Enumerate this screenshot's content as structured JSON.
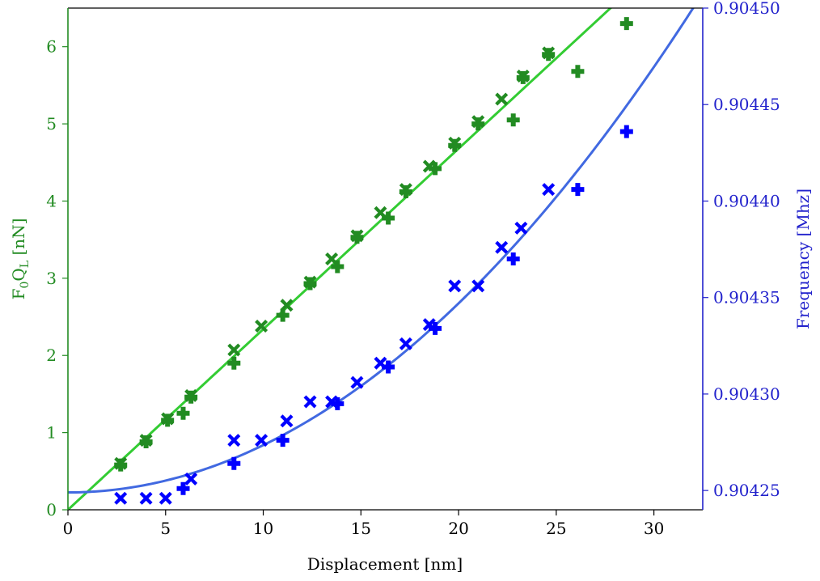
{
  "chart_data": {
    "type": "scatter",
    "xlabel": "Displacement [nm]",
    "ylabel_left": "F0QL [nN]",
    "ylabel_left_parts": {
      "base": "F",
      "sub1": "0",
      "mid": "Q",
      "sub2": "L",
      "unit": " [nN]"
    },
    "ylabel_right": "Frequency [Mhz]",
    "xlim": [
      0,
      32.5
    ],
    "ylim_left": [
      0,
      6.5
    ],
    "ylim_right": [
      0.90424,
      0.9045
    ],
    "x_ticks": [
      0,
      5,
      10,
      15,
      20,
      25,
      30
    ],
    "x_tick_labels": [
      "0",
      "5",
      "10",
      "15",
      "20",
      "25",
      "30"
    ],
    "y_left_ticks": [
      0,
      1,
      2,
      3,
      4,
      5,
      6
    ],
    "y_left_tick_labels": [
      "0",
      "1",
      "2",
      "3",
      "4",
      "5",
      "6"
    ],
    "y_right_ticks": [
      0.90425,
      0.9043,
      0.90435,
      0.9044,
      0.90445,
      0.9045
    ],
    "y_right_tick_labels": [
      "0.90425",
      "0.90430",
      "0.90435",
      "0.90440",
      "0.90445",
      "0.90450"
    ],
    "grid": false,
    "legend": "none",
    "colors": {
      "left_axis": "#228b22",
      "force_points": "#228b22",
      "force_fit": "#33cc33",
      "right_axis": "#2222cc",
      "freq_points": "#0000ff",
      "freq_fit": "#4169e1"
    },
    "series": [
      {
        "axis": "left",
        "marker": "X",
        "points": [
          [
            2.7,
            0.6
          ],
          [
            4.0,
            0.9
          ],
          [
            5.1,
            1.18
          ],
          [
            6.3,
            1.48
          ],
          [
            8.5,
            2.07
          ],
          [
            9.9,
            2.38
          ],
          [
            11.2,
            2.65
          ],
          [
            12.4,
            2.95
          ],
          [
            13.5,
            3.25
          ],
          [
            14.8,
            3.55
          ],
          [
            16.0,
            3.85
          ],
          [
            17.3,
            4.15
          ],
          [
            18.5,
            4.45
          ],
          [
            19.8,
            4.75
          ],
          [
            21.0,
            5.03
          ],
          [
            22.2,
            5.32
          ],
          [
            23.3,
            5.62
          ],
          [
            24.6,
            5.92
          ]
        ]
      },
      {
        "axis": "left",
        "marker": "P",
        "points": [
          [
            2.7,
            0.58
          ],
          [
            4.0,
            0.88
          ],
          [
            5.1,
            1.16
          ],
          [
            5.9,
            1.25
          ],
          [
            6.3,
            1.46
          ],
          [
            8.5,
            1.9
          ],
          [
            11.0,
            2.52
          ],
          [
            12.4,
            2.93
          ],
          [
            13.8,
            3.15
          ],
          [
            14.8,
            3.53
          ],
          [
            16.4,
            3.78
          ],
          [
            17.3,
            4.12
          ],
          [
            18.8,
            4.42
          ],
          [
            19.8,
            4.72
          ],
          [
            21.0,
            5.0
          ],
          [
            22.8,
            5.05
          ],
          [
            23.3,
            5.6
          ],
          [
            24.6,
            5.9
          ],
          [
            26.1,
            5.68
          ],
          [
            28.6,
            6.3
          ]
        ]
      },
      {
        "axis": "right",
        "marker": "X",
        "points": [
          [
            2.7,
            0.904246
          ],
          [
            4.0,
            0.904246
          ],
          [
            5.0,
            0.904246
          ],
          [
            6.3,
            0.904256
          ],
          [
            8.5,
            0.904276
          ],
          [
            9.9,
            0.904276
          ],
          [
            11.2,
            0.904286
          ],
          [
            12.4,
            0.904296
          ],
          [
            13.5,
            0.904296
          ],
          [
            14.8,
            0.904306
          ],
          [
            16.0,
            0.904316
          ],
          [
            17.3,
            0.904326
          ],
          [
            18.5,
            0.904336
          ],
          [
            19.8,
            0.904356
          ],
          [
            21.0,
            0.904356
          ],
          [
            22.2,
            0.904376
          ],
          [
            23.2,
            0.904386
          ],
          [
            24.6,
            0.904406
          ]
        ]
      },
      {
        "axis": "right",
        "marker": "P",
        "points": [
          [
            5.9,
            0.904251
          ],
          [
            8.5,
            0.904264
          ],
          [
            11.0,
            0.904276
          ],
          [
            13.8,
            0.904295
          ],
          [
            16.4,
            0.904314
          ],
          [
            18.8,
            0.904334
          ],
          [
            22.8,
            0.90437
          ],
          [
            26.1,
            0.904406
          ],
          [
            28.6,
            0.904436
          ]
        ]
      }
    ],
    "fits": [
      {
        "axis": "left",
        "kind": "linear",
        "slope": 0.234,
        "intercept": 0.0,
        "x_range": [
          0,
          32.5
        ]
      },
      {
        "axis": "right",
        "kind": "quadratic",
        "a": 2.45e-07,
        "b": 0.0,
        "c": 0.904249,
        "x_range": [
          0,
          32.5
        ]
      }
    ]
  }
}
